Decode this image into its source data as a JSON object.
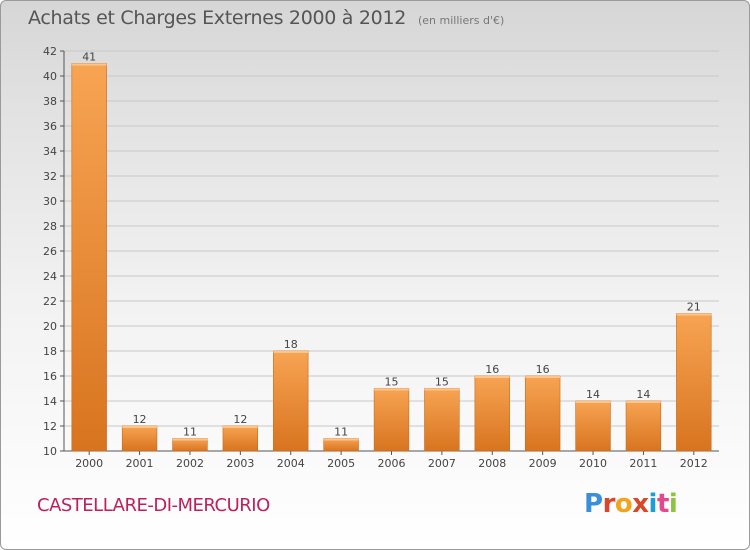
{
  "header": {
    "title": "Achats et Charges Externes 2000 à 2012",
    "subtitle": "(en milliers d'€)"
  },
  "footer": {
    "city": "CASTELLARE-DI-MERCURIO",
    "logo_text": "Proxiti"
  },
  "colors": {
    "bar_light": "#f7a453",
    "bar_dark": "#d8741f",
    "city_text": "#c0205a"
  },
  "chart_data": {
    "type": "bar",
    "title": "Achats et Charges Externes 2000 à 2012",
    "subtitle": "(en milliers d'€)",
    "categories": [
      "2000",
      "2001",
      "2002",
      "2003",
      "2004",
      "2005",
      "2006",
      "2007",
      "2008",
      "2009",
      "2010",
      "2011",
      "2012"
    ],
    "values": [
      41,
      12,
      11,
      12,
      18,
      11,
      15,
      15,
      16,
      16,
      14,
      14,
      21
    ],
    "ylim": [
      10,
      42
    ],
    "yticks": [
      10,
      12,
      14,
      16,
      18,
      20,
      22,
      24,
      26,
      28,
      30,
      32,
      34,
      36,
      38,
      40,
      42
    ],
    "ytick_labels": [
      "10",
      "12",
      "14",
      "16",
      "18",
      "20",
      "22",
      "24",
      "26",
      "28",
      "30",
      "32",
      "34",
      "36",
      "38",
      "40",
      "42"
    ],
    "grid": true,
    "xlabel": "",
    "ylabel": ""
  }
}
